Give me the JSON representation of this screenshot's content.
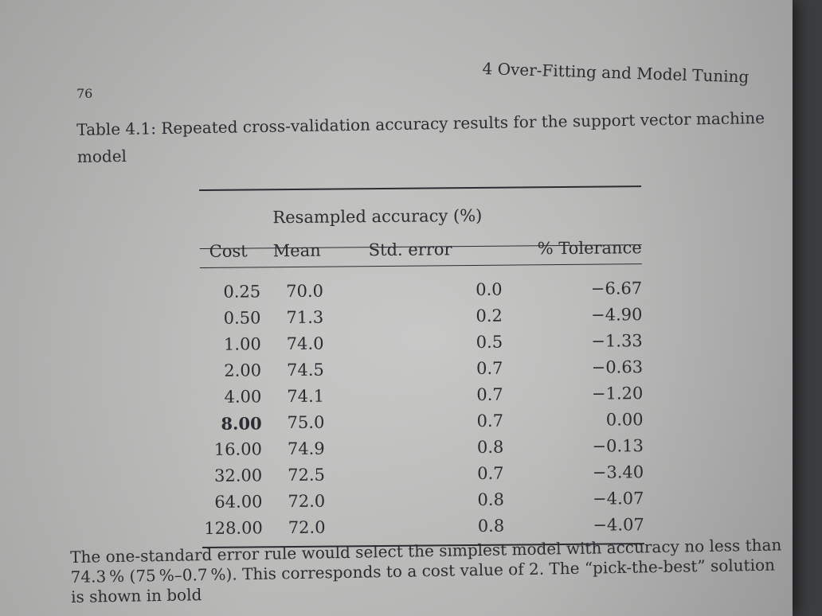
{
  "running_head": "4 Over-Fitting and Model Tuning",
  "page_number": "76",
  "caption": "Table 4.1: Repeated cross-validation accuracy results for the support vector machine model",
  "table": {
    "group_header": "Resampled accuracy (%)",
    "columns": [
      "Cost",
      "Mean",
      "Std. error",
      "% Tolerance"
    ],
    "rows": [
      {
        "cost": "0.25",
        "mean": "70.0",
        "se": "0.0",
        "tol": "−6.67",
        "bold": false
      },
      {
        "cost": "0.50",
        "mean": "71.3",
        "se": "0.2",
        "tol": "−4.90",
        "bold": false
      },
      {
        "cost": "1.00",
        "mean": "74.0",
        "se": "0.5",
        "tol": "−1.33",
        "bold": false
      },
      {
        "cost": "2.00",
        "mean": "74.5",
        "se": "0.7",
        "tol": "−0.63",
        "bold": false
      },
      {
        "cost": "4.00",
        "mean": "74.1",
        "se": "0.7",
        "tol": "−1.20",
        "bold": false
      },
      {
        "cost": "8.00",
        "mean": "75.0",
        "se": "0.7",
        "tol": "0.00",
        "bold": true
      },
      {
        "cost": "16.00",
        "mean": "74.9",
        "se": "0.8",
        "tol": "−0.13",
        "bold": false
      },
      {
        "cost": "32.00",
        "mean": "72.5",
        "se": "0.7",
        "tol": "−3.40",
        "bold": false
      },
      {
        "cost": "64.00",
        "mean": "72.0",
        "se": "0.8",
        "tol": "−4.07",
        "bold": false
      },
      {
        "cost": "128.00",
        "mean": "72.0",
        "se": "0.8",
        "tol": "−4.07",
        "bold": false
      }
    ]
  },
  "body_text": "The one-standard error rule would select the simplest model with accuracy no less than 74.3 % (75 %–0.7 %). This corresponds to a cost value of 2. The “pick-the-best” solution is shown in bold"
}
